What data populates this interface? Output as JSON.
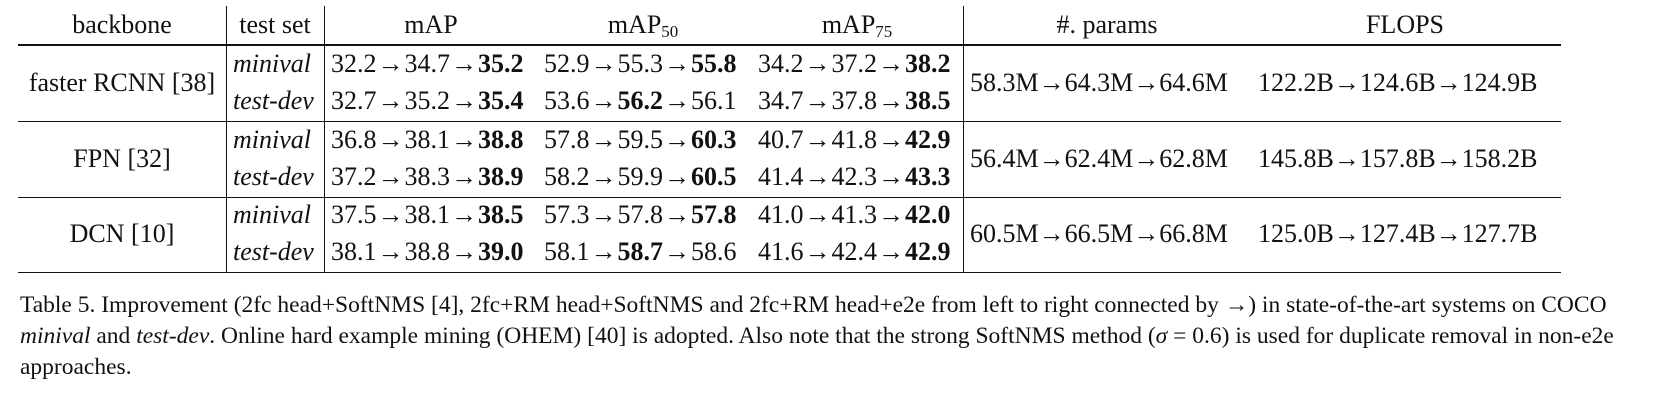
{
  "table": {
    "headers": {
      "backbone": "backbone",
      "test_set": "test set",
      "map": "mAP",
      "map50_base": "mAP",
      "map50_sub": "50",
      "map75_base": "mAP",
      "map75_sub": "75",
      "params": "#. params",
      "flops": "FLOPS"
    },
    "arrow": "→",
    "groups": [
      {
        "backbone": "faster RCNN [38]",
        "params": "58.3M→64.3M→64.6M",
        "flops": "122.2B→124.6B→124.9B",
        "rows": [
          {
            "test_set": "minival",
            "map": [
              "32.2",
              "34.7",
              "35.2"
            ],
            "map_best": 2,
            "map50": [
              "52.9",
              "55.3",
              "55.8"
            ],
            "map50_best": 2,
            "map75": [
              "34.2",
              "37.2",
              "38.2"
            ],
            "map75_best": 2
          },
          {
            "test_set": "test-dev",
            "map": [
              "32.7",
              "35.2",
              "35.4"
            ],
            "map_best": 2,
            "map50": [
              "53.6",
              "56.2",
              "56.1"
            ],
            "map50_best": 1,
            "map75": [
              "34.7",
              "37.8",
              "38.5"
            ],
            "map75_best": 2
          }
        ]
      },
      {
        "backbone": "FPN [32]",
        "params": "56.4M→62.4M→62.8M",
        "flops": "145.8B→157.8B→158.2B",
        "rows": [
          {
            "test_set": "minival",
            "map": [
              "36.8",
              "38.1",
              "38.8"
            ],
            "map_best": 2,
            "map50": [
              "57.8",
              "59.5",
              "60.3"
            ],
            "map50_best": 2,
            "map75": [
              "40.7",
              "41.8",
              "42.9"
            ],
            "map75_best": 2
          },
          {
            "test_set": "test-dev",
            "map": [
              "37.2",
              "38.3",
              "38.9"
            ],
            "map_best": 2,
            "map50": [
              "58.2",
              "59.9",
              "60.5"
            ],
            "map50_best": 2,
            "map75": [
              "41.4",
              "42.3",
              "43.3"
            ],
            "map75_best": 2
          }
        ]
      },
      {
        "backbone": "DCN [10]",
        "params": "60.5M→66.5M→66.8M",
        "flops": "125.0B→127.4B→127.7B",
        "rows": [
          {
            "test_set": "minival",
            "map": [
              "37.5",
              "38.1",
              "38.5"
            ],
            "map_best": 2,
            "map50": [
              "57.3",
              "57.8",
              "57.8"
            ],
            "map50_best": 2,
            "map75": [
              "41.0",
              "41.3",
              "42.0"
            ],
            "map75_best": 2
          },
          {
            "test_set": "test-dev",
            "map": [
              "38.1",
              "38.8",
              "39.0"
            ],
            "map_best": 2,
            "map50": [
              "58.1",
              "58.7",
              "58.6"
            ],
            "map50_best": 1,
            "map75": [
              "41.6",
              "42.4",
              "42.9"
            ],
            "map75_best": 2
          }
        ]
      }
    ]
  },
  "caption": {
    "p1": "Table 5. Improvement (2fc head+SoftNMS [4], 2fc+RM head+SoftNMS and 2fc+RM head+e2e from left to right connected by ",
    "arrow": "→",
    "p2": ") in state-of-the-art systems on COCO ",
    "em1": "minival",
    "p3": " and ",
    "em2": "test-dev",
    "p4": ". Online hard example mining (OHEM) [40] is adopted. Also note that the strong SoftNMS method (",
    "sigma": "σ",
    "p5": " = 0.6) is used for duplicate removal in non-e2e approaches."
  }
}
